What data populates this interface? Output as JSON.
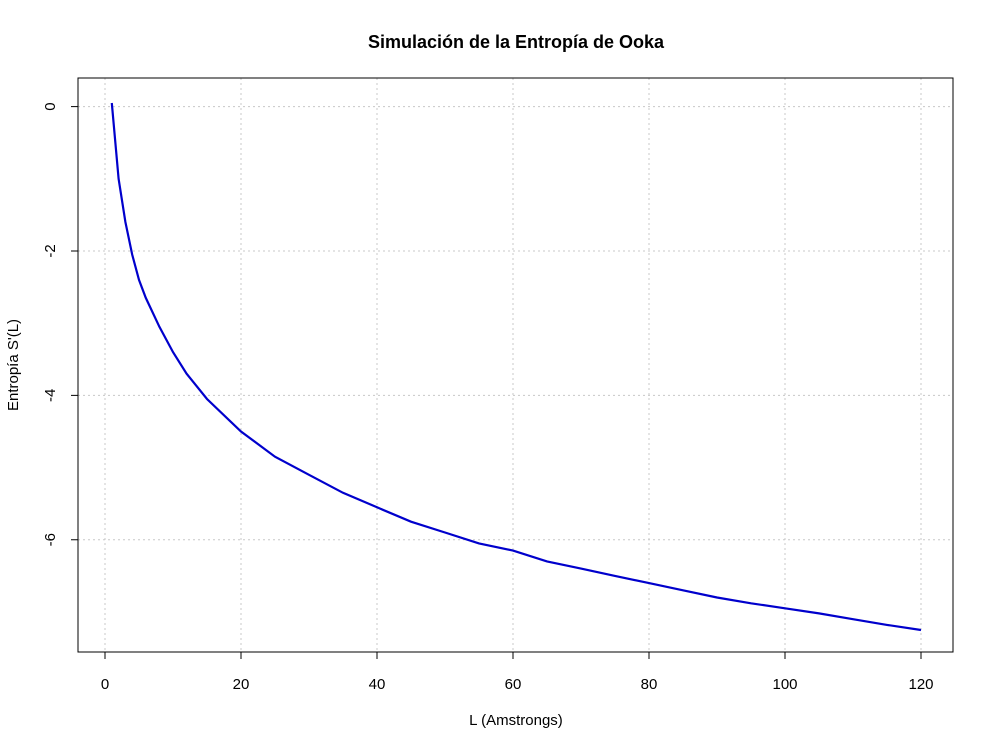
{
  "chart_data": {
    "type": "line",
    "title": "Simulación de la Entropía de Ooka",
    "xlabel": "L (Amstrongs)",
    "ylabel": "Entropía S'(L)",
    "xlim": [
      0,
      120
    ],
    "ylim": [
      -7.6,
      0.35
    ],
    "x_ticks": [
      0,
      20,
      40,
      60,
      80,
      100,
      120
    ],
    "x_tick_labels": [
      "0",
      "20",
      "40",
      "60",
      "80",
      "100",
      "120"
    ],
    "y_ticks": [
      0,
      -2,
      -4,
      -6
    ],
    "y_tick_labels": [
      "0",
      "-2",
      "-4",
      "-6"
    ],
    "grid": true,
    "series": [
      {
        "color": "#0000cc",
        "x": [
          1,
          2,
          3,
          4,
          5,
          6,
          8,
          10,
          12,
          15,
          20,
          25,
          30,
          35,
          40,
          45,
          50,
          55,
          60,
          65,
          70,
          75,
          80,
          85,
          90,
          95,
          100,
          105,
          110,
          115,
          120
        ],
        "y": [
          0.05,
          -1.0,
          -1.6,
          -2.05,
          -2.4,
          -2.65,
          -3.05,
          -3.4,
          -3.7,
          -4.05,
          -4.5,
          -4.85,
          -5.1,
          -5.35,
          -5.55,
          -5.75,
          -5.9,
          -6.05,
          -6.15,
          -6.3,
          -6.4,
          -6.5,
          -6.6,
          -6.7,
          -6.8,
          -6.88,
          -6.95,
          -7.02,
          -7.1,
          -7.18,
          -7.25
        ]
      }
    ]
  }
}
